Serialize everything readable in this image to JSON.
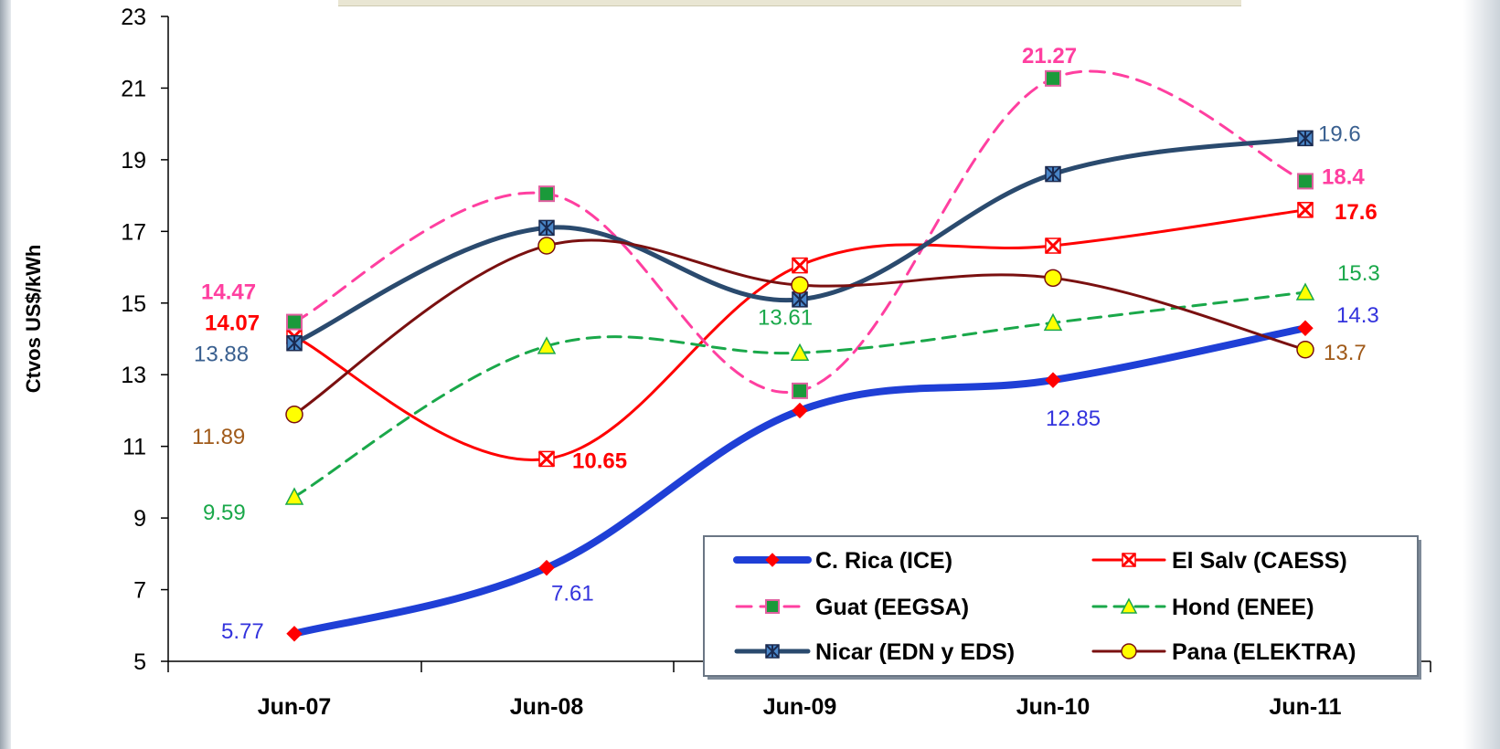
{
  "colors": {
    "crica": "#1f3fd6",
    "crica_marker": "#ff0000",
    "elsalv": "#ff0000",
    "guat": "#ff3fa0",
    "guat_marker": "#1a9a3a",
    "hond": "#1aa84a",
    "hond_marker": "#ffff00",
    "nicar": "#2a4a6e",
    "nicar_marker": "#4a86c8",
    "pana": "#7a1010",
    "pana_marker": "#ffff00",
    "crica_label": "#3333dd",
    "nicar_label": "#3a6090",
    "pana_label": "#a05a1a",
    "hond_label": "#1aa84a"
  },
  "chart_data": {
    "type": "line",
    "ylabel": "Ctvos  US$/kWh",
    "categories": [
      "Jun-07",
      "Jun-08",
      "Jun-09",
      "Jun-10",
      "Jun-11"
    ],
    "ylim": [
      5,
      23
    ],
    "yticks": [
      "5",
      "7",
      "9",
      "11",
      "13",
      "15",
      "17",
      "19",
      "21",
      "23"
    ],
    "legend_position": "bottom-right",
    "series": [
      {
        "name": "C. Rica (ICE)",
        "values": [
          5.77,
          7.61,
          12.0,
          12.85,
          14.3
        ]
      },
      {
        "name": "El Salv (CAESS)",
        "values": [
          14.07,
          10.65,
          16.05,
          16.6,
          17.6
        ]
      },
      {
        "name": "Guat (EEGSA)",
        "values": [
          14.47,
          18.05,
          12.55,
          21.27,
          18.4
        ]
      },
      {
        "name": "Hond (ENEE)",
        "values": [
          9.59,
          13.8,
          13.61,
          14.45,
          15.3
        ]
      },
      {
        "name": "Nicar (EDN y EDS)",
        "values": [
          13.88,
          17.1,
          15.1,
          18.6,
          19.6
        ]
      },
      {
        "name": "Pana (ELEKTRA)",
        "values": [
          11.89,
          16.6,
          15.5,
          15.7,
          13.7
        ]
      }
    ],
    "data_labels": [
      {
        "series": 0,
        "point": 0,
        "text": "5.77"
      },
      {
        "series": 0,
        "point": 1,
        "text": "7.61"
      },
      {
        "series": 0,
        "point": 3,
        "text": "12.85"
      },
      {
        "series": 0,
        "point": 4,
        "text": "14.3"
      },
      {
        "series": 1,
        "point": 0,
        "text": "14.07"
      },
      {
        "series": 1,
        "point": 1,
        "text": "10.65"
      },
      {
        "series": 1,
        "point": 4,
        "text": "17.6"
      },
      {
        "series": 2,
        "point": 0,
        "text": "14.47"
      },
      {
        "series": 2,
        "point": 3,
        "text": "21.27"
      },
      {
        "series": 2,
        "point": 4,
        "text": "18.4"
      },
      {
        "series": 3,
        "point": 0,
        "text": "9.59"
      },
      {
        "series": 3,
        "point": 2,
        "text": "13.61"
      },
      {
        "series": 3,
        "point": 4,
        "text": "15.3"
      },
      {
        "series": 4,
        "point": 0,
        "text": "13.88"
      },
      {
        "series": 4,
        "point": 4,
        "text": "19.6"
      },
      {
        "series": 5,
        "point": 0,
        "text": "11.89"
      },
      {
        "series": 5,
        "point": 4,
        "text": "13.7"
      }
    ]
  }
}
